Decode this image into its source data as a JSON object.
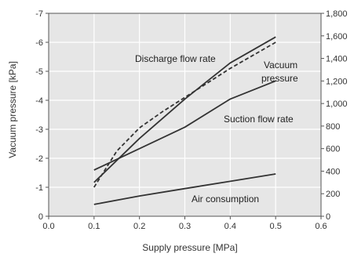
{
  "chart_data": {
    "type": "line",
    "xlabel": "Supply pressure [MPa]",
    "ylabel": "Vacuum pressure [kPa]",
    "xlim": [
      0,
      0.6
    ],
    "ylim_left": [
      0,
      -7
    ],
    "ylim_right": [
      0,
      1800
    ],
    "x_ticks": [
      "0.0",
      "0.1",
      "0.2",
      "0.3",
      "0.4",
      "0.5",
      "0.6"
    ],
    "y_left_ticks": [
      "0",
      "-1",
      "-2",
      "-3",
      "-4",
      "-5",
      "-6",
      "-7"
    ],
    "y_right_ticks": [
      "0",
      "200",
      "400",
      "600",
      "800",
      "1,000",
      "1,200",
      "1,400",
      "1,600",
      "1,800"
    ],
    "grid": true,
    "plot_background": "#e6e6e6",
    "line_color": "#333333",
    "series": [
      {
        "name": "Discharge flow rate",
        "axis": "right",
        "style": "solid",
        "x": [
          0.1,
          0.2,
          0.3,
          0.4,
          0.5
        ],
        "y": [
          300,
          690,
          1040,
          1360,
          1590
        ]
      },
      {
        "name": "Vacuum pressure",
        "axis": "left",
        "style": "dashed",
        "x": [
          0.1,
          0.15,
          0.2,
          0.25,
          0.3,
          0.4,
          0.5
        ],
        "y": [
          -1.0,
          -2.25,
          -3.05,
          -3.6,
          -4.1,
          -5.1,
          -6.0
        ]
      },
      {
        "name": "Suction flow rate",
        "axis": "right",
        "style": "solid",
        "x": [
          0.1,
          0.2,
          0.3,
          0.4,
          0.5
        ],
        "y": [
          410,
          600,
          790,
          1040,
          1200
        ]
      },
      {
        "name": "Air consumption",
        "axis": "right",
        "style": "solid",
        "x": [
          0.1,
          0.2,
          0.3,
          0.4,
          0.5
        ],
        "y": [
          105,
          180,
          245,
          310,
          375
        ]
      }
    ],
    "annotations": [
      {
        "text": "Discharge flow rate",
        "series": 0
      },
      {
        "text": "Vacuum",
        "series": 1
      },
      {
        "text": "pressure",
        "series": 1
      },
      {
        "text": "Suction flow rate",
        "series": 2
      },
      {
        "text": "Air consumption",
        "series": 3
      }
    ]
  }
}
